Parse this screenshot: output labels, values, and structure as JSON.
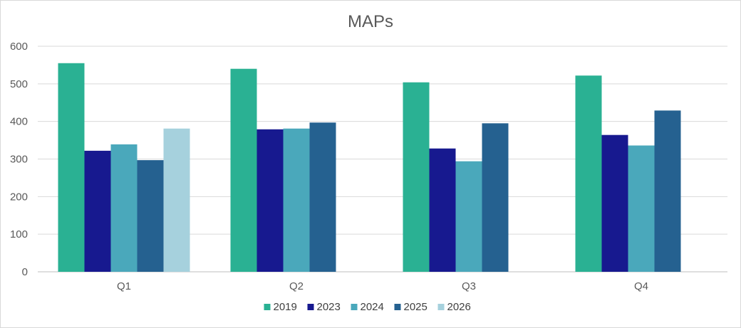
{
  "chart_data": {
    "type": "bar",
    "title": "MAPs",
    "xlabel": "",
    "ylabel": "",
    "categories": [
      "Q1",
      "Q2",
      "Q3",
      "Q4"
    ],
    "ylim": [
      0,
      600
    ],
    "yticks": [
      "0",
      "100",
      "200",
      "300",
      "400",
      "500",
      "600"
    ],
    "grid": true,
    "legend_position": "bottom",
    "series": [
      {
        "name": "2019",
        "color": "#2ab193",
        "values": [
          555,
          540,
          504,
          522
        ]
      },
      {
        "name": "2023",
        "color": "#17198f",
        "values": [
          322,
          379,
          328,
          364
        ]
      },
      {
        "name": "2024",
        "color": "#4aa8bb",
        "values": [
          339,
          381,
          294,
          336
        ]
      },
      {
        "name": "2025",
        "color": "#256190",
        "values": [
          297,
          397,
          395,
          429
        ]
      },
      {
        "name": "2026",
        "color": "#a6d1dd",
        "values": [
          381,
          null,
          null,
          null
        ]
      }
    ]
  }
}
